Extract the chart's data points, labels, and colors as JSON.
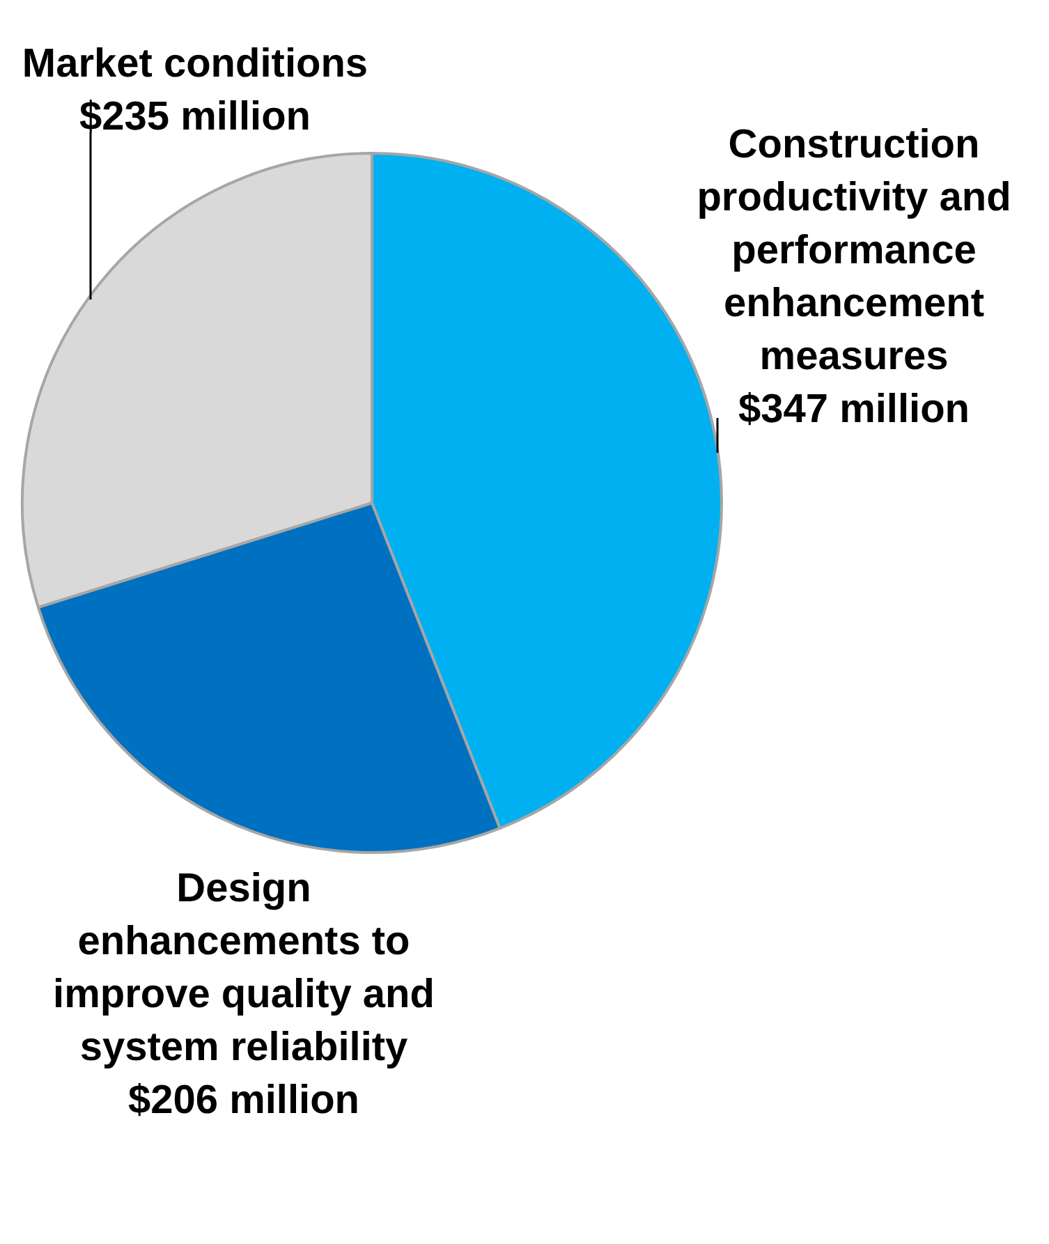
{
  "chart_data": {
    "type": "pie",
    "categories": [
      "Construction productivity and performance enhancement measures",
      "Design enhancements to improve quality and system reliability",
      "Market conditions"
    ],
    "values": [
      347,
      206,
      235
    ],
    "value_labels": [
      "$347 million",
      "$206 million",
      "$235 million"
    ],
    "colors": [
      "#00b0f0",
      "#0070c0",
      "#d9d9d9"
    ],
    "legend": false
  }
}
